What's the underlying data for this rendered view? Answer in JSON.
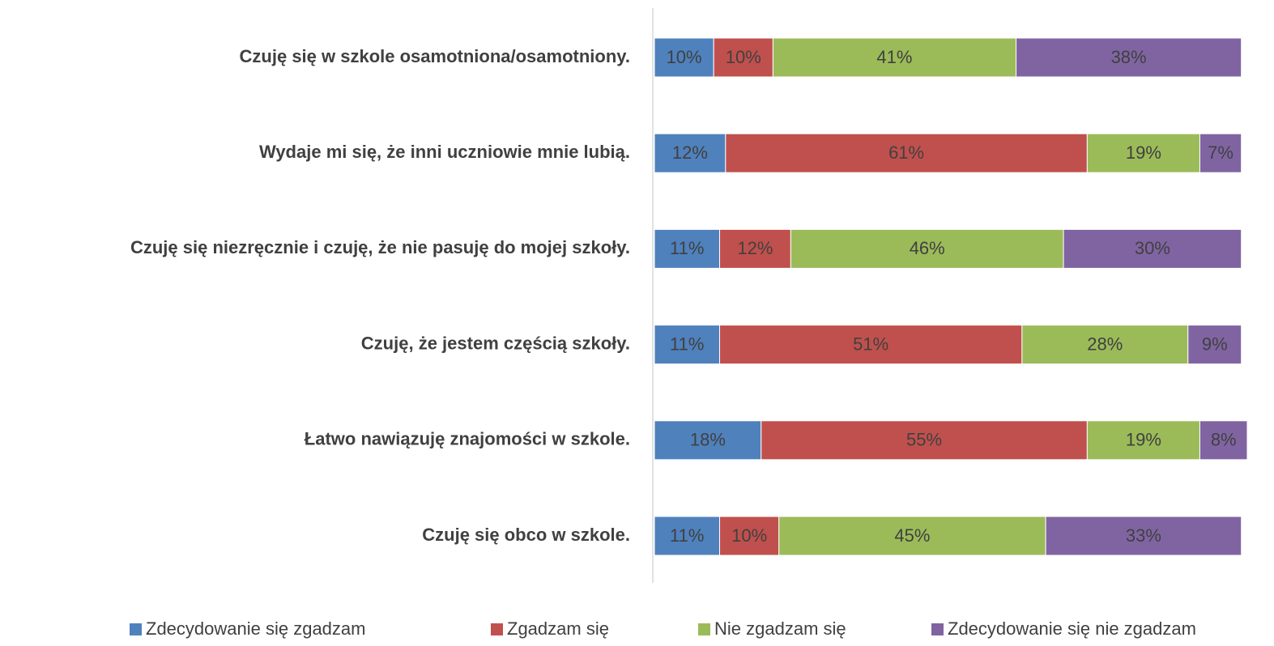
{
  "chart_data": {
    "type": "stacked_bar_horizontal",
    "categories": [
      "Czuję się w szkole osamotniona/osamotniony.",
      "Wydaje mi się, że inni uczniowie mnie lubią.",
      "Czuję się niezręcznie i czuję, że nie pasuję do mojej szkoły.",
      "Czuję, że jestem częścią szkoły.",
      "Łatwo nawiązuję znajomości w szkole.",
      "Czuję się obco w szkole."
    ],
    "series": [
      {
        "name": "Zdecydowanie się zgadzam",
        "color": "#4f81bd",
        "values": [
          10,
          12,
          11,
          11,
          18,
          11
        ],
        "value_labels": [
          "10%",
          "12%",
          "11%",
          "11%",
          "18%",
          "11%"
        ]
      },
      {
        "name": "Zgadzam się",
        "color": "#c0504d",
        "values": [
          10,
          61,
          12,
          51,
          55,
          10
        ],
        "value_labels": [
          "10%",
          "61%",
          "12%",
          "51%",
          "55%",
          "10%"
        ]
      },
      {
        "name": "Nie zgadzam się",
        "color": "#9bbb59",
        "values": [
          41,
          19,
          46,
          28,
          19,
          45
        ],
        "value_labels": [
          "41%",
          "19%",
          "46%",
          "28%",
          "19%",
          "45%"
        ]
      },
      {
        "name": "Zdecydowanie się nie zgadzam",
        "color": "#8064a2",
        "values": [
          38,
          7,
          30,
          9,
          8,
          33
        ],
        "value_labels": [
          "38%",
          "7%",
          "30%",
          "9%",
          "8%",
          "33%"
        ]
      }
    ]
  }
}
